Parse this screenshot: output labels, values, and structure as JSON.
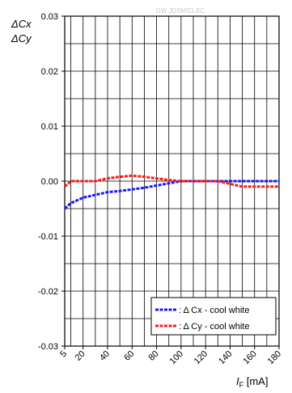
{
  "chart_data": {
    "type": "line",
    "watermark": "GW JDSMS1.EC",
    "y_label_line1": "ΔCx",
    "y_label_line2": "ΔCy",
    "x_label_main": "I",
    "x_label_sub": "F",
    "x_label_unit": " [mA]",
    "xlim": [
      5,
      180
    ],
    "ylim": [
      -0.03,
      0.03
    ],
    "x_ticks": [
      "5",
      "20",
      "40",
      "60",
      "80",
      "100",
      "120",
      "140",
      "160",
      "180"
    ],
    "x_tick_values": [
      5,
      20,
      40,
      60,
      80,
      100,
      120,
      140,
      160,
      180
    ],
    "y_ticks": [
      "0.03",
      "0.02",
      "0.01",
      "0.00",
      "-0.01",
      "-0.02",
      "-0.03"
    ],
    "y_tick_values": [
      0.03,
      0.02,
      0.01,
      0.0,
      -0.01,
      -0.02,
      -0.03
    ],
    "grid": true,
    "legend_position": "bottom-right",
    "series": [
      {
        "name": ": Δ Cx - cool white",
        "color": "#1a1aff",
        "x": [
          5,
          10,
          20,
          30,
          40,
          50,
          60,
          70,
          80,
          90,
          100,
          110,
          120,
          130,
          140,
          150,
          160,
          170,
          180
        ],
        "y": [
          -0.005,
          -0.004,
          -0.003,
          -0.0025,
          -0.002,
          -0.0018,
          -0.0015,
          -0.0012,
          -0.0008,
          -0.0004,
          0.0,
          0.0,
          0.0,
          0.0,
          0.0,
          0.0,
          0.0,
          0.0,
          0.0
        ]
      },
      {
        "name": ": Δ Cy - cool white",
        "color": "#ff1a1a",
        "x": [
          5,
          10,
          20,
          30,
          40,
          50,
          60,
          70,
          80,
          90,
          100,
          110,
          120,
          130,
          140,
          150,
          160,
          170,
          180
        ],
        "y": [
          -0.001,
          0.0,
          0.0,
          0.0,
          0.0005,
          0.0008,
          0.001,
          0.0008,
          0.0005,
          0.0002,
          0.0,
          0.0,
          0.0,
          0.0,
          -0.0005,
          -0.001,
          -0.001,
          -0.001,
          -0.001
        ]
      }
    ]
  }
}
